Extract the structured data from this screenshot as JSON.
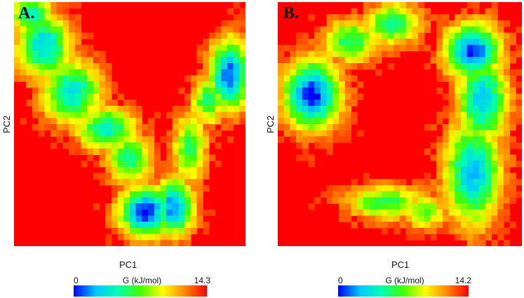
{
  "chart_data": [
    {
      "type": "heatmap",
      "panel_label": "A.",
      "xlabel": "PC1",
      "ylabel": "PC2",
      "colorbar": {
        "min": "0",
        "label": "G (kJ/mol)",
        "max": "14.3",
        "vmax": 14.3
      },
      "grid": {
        "cols": 38,
        "rows": 40
      },
      "colormap": [
        "#0000ff",
        "#00c8ff",
        "#00ffb0",
        "#44ff00",
        "#ffff00",
        "#ff8800",
        "#ff0000"
      ],
      "basins": [
        {
          "x": 0.08,
          "y": 0.05,
          "sx": 0.06,
          "sy": 0.05,
          "depth": 0.75
        },
        {
          "x": 0.13,
          "y": 0.18,
          "sx": 0.08,
          "sy": 0.09,
          "depth": 0.8
        },
        {
          "x": 0.25,
          "y": 0.37,
          "sx": 0.09,
          "sy": 0.09,
          "depth": 0.75
        },
        {
          "x": 0.4,
          "y": 0.52,
          "sx": 0.09,
          "sy": 0.06,
          "depth": 0.72
        },
        {
          "x": 0.5,
          "y": 0.64,
          "sx": 0.07,
          "sy": 0.07,
          "depth": 0.62
        },
        {
          "x": 0.57,
          "y": 0.86,
          "sx": 0.08,
          "sy": 0.07,
          "depth": 1.0
        },
        {
          "x": 0.69,
          "y": 0.84,
          "sx": 0.06,
          "sy": 0.08,
          "depth": 0.92
        },
        {
          "x": 0.76,
          "y": 0.6,
          "sx": 0.05,
          "sy": 0.1,
          "depth": 0.58
        },
        {
          "x": 0.84,
          "y": 0.4,
          "sx": 0.05,
          "sy": 0.07,
          "depth": 0.62
        },
        {
          "x": 0.93,
          "y": 0.3,
          "sx": 0.06,
          "sy": 0.1,
          "depth": 0.95
        }
      ]
    },
    {
      "type": "heatmap",
      "panel_label": "B.",
      "xlabel": "PC1",
      "ylabel": "PC2",
      "colorbar": {
        "min": "0",
        "label": "G (kJ/mol)",
        "max": "14.2",
        "vmax": 14.2
      },
      "grid": {
        "cols": 40,
        "rows": 40
      },
      "colormap": [
        "#0000ff",
        "#00c8ff",
        "#00ffb0",
        "#44ff00",
        "#ffff00",
        "#ff8800",
        "#ff0000"
      ],
      "basins": [
        {
          "x": 0.14,
          "y": 0.38,
          "sx": 0.08,
          "sy": 0.1,
          "depth": 1.0
        },
        {
          "x": 0.3,
          "y": 0.16,
          "sx": 0.08,
          "sy": 0.06,
          "depth": 0.62
        },
        {
          "x": 0.47,
          "y": 0.09,
          "sx": 0.08,
          "sy": 0.06,
          "depth": 0.62
        },
        {
          "x": 0.8,
          "y": 0.2,
          "sx": 0.08,
          "sy": 0.08,
          "depth": 0.95
        },
        {
          "x": 0.84,
          "y": 0.4,
          "sx": 0.07,
          "sy": 0.12,
          "depth": 0.82
        },
        {
          "x": 0.8,
          "y": 0.7,
          "sx": 0.08,
          "sy": 0.15,
          "depth": 0.82
        },
        {
          "x": 0.44,
          "y": 0.82,
          "sx": 0.11,
          "sy": 0.05,
          "depth": 0.58
        },
        {
          "x": 0.6,
          "y": 0.86,
          "sx": 0.06,
          "sy": 0.05,
          "depth": 0.52
        }
      ]
    }
  ]
}
